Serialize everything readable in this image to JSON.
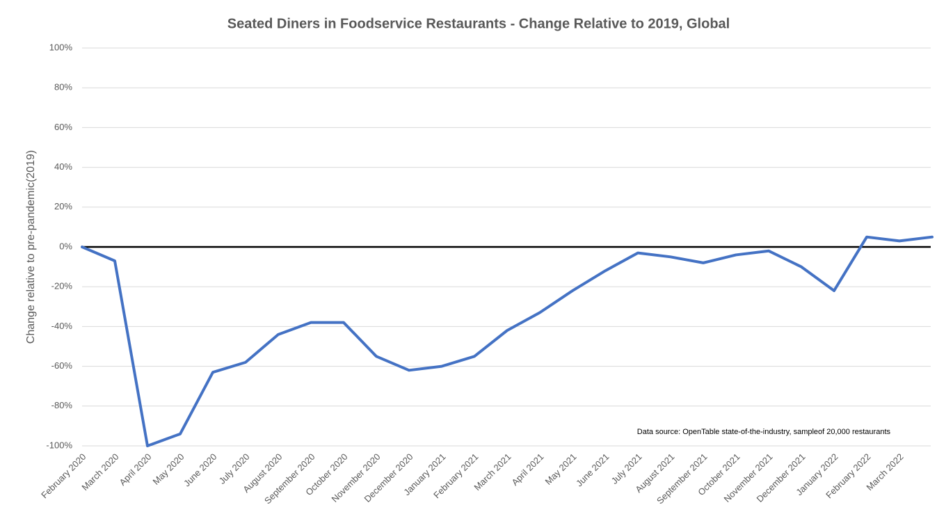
{
  "chart_data": {
    "type": "line",
    "title": "Seated Diners in Foodservice Restaurants - Change Relative to 2019, Global",
    "ylabel": "Change relative to pre-pandemic(2019)",
    "annotation": "Data source: OpenTable state-of-the-industry, sampleof 20,000 restaurants",
    "categories": [
      "February 2020",
      "March 2020",
      "April 2020",
      "May 2020",
      "June 2020",
      "July 2020",
      "August 2020",
      "September 2020",
      "October 2020",
      "November 2020",
      "December 2020",
      "January 2021",
      "February 2021",
      "March 2021",
      "April 2021",
      "May 2021",
      "June 2021",
      "July 2021",
      "August 2021",
      "September 2021",
      "October 2021",
      "November 2021",
      "December 2021",
      "January 2022",
      "February 2022",
      "March 2022",
      null
    ],
    "series": [
      {
        "name": "Seated diners",
        "color": "#4472c4",
        "values": [
          0,
          -7,
          -100,
          -94,
          -63,
          -58,
          -44,
          -38,
          -38,
          -55,
          -62,
          -60,
          -55,
          -42,
          -33,
          -22,
          -12,
          -3,
          -5,
          -8,
          -4,
          -2,
          -10,
          -22,
          5,
          3,
          5
        ]
      }
    ],
    "ylim": [
      -100,
      100
    ],
    "yticks": [
      {
        "value": -100,
        "label": "-100%"
      },
      {
        "value": -80,
        "label": "-80%"
      },
      {
        "value": -60,
        "label": "-60%"
      },
      {
        "value": -40,
        "label": "-40%"
      },
      {
        "value": -20,
        "label": "-20%"
      },
      {
        "value": 0,
        "label": "0%"
      },
      {
        "value": 20,
        "label": "20%"
      },
      {
        "value": 40,
        "label": "40%"
      },
      {
        "value": 60,
        "label": "60%"
      },
      {
        "value": 80,
        "label": "80%"
      },
      {
        "value": 100,
        "label": "100%"
      }
    ],
    "grid": true
  }
}
